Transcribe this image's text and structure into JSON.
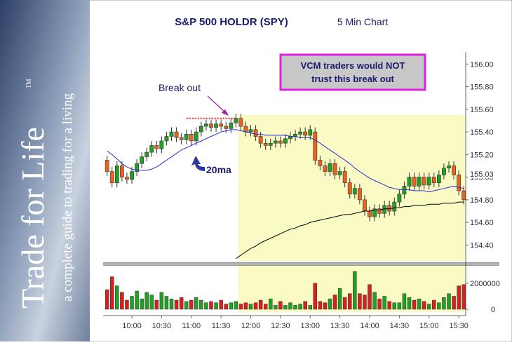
{
  "sidebar": {
    "title": "Trade for Life",
    "trademark": "TM",
    "tagline": "a complete guide to trading for a living"
  },
  "chart_data": [
    {
      "type": "candlestick",
      "title": "S&P 500 HOLDR (SPY)",
      "subtitle": "5 Min Chart",
      "x": [
        "9:35",
        "9:40",
        "9:45",
        "9:50",
        "9:55",
        "10:00",
        "10:05",
        "10:10",
        "10:15",
        "10:20",
        "10:25",
        "10:30",
        "10:35",
        "10:40",
        "10:45",
        "10:50",
        "10:55",
        "11:00",
        "11:05",
        "11:10",
        "11:15",
        "11:20",
        "11:25",
        "11:30",
        "11:35",
        "11:40",
        "11:45",
        "11:50",
        "11:55",
        "12:00",
        "12:05",
        "12:10",
        "12:15",
        "12:20",
        "12:25",
        "12:30",
        "12:35",
        "12:40",
        "12:45",
        "12:50",
        "12:55",
        "13:00",
        "13:05",
        "13:10",
        "13:15",
        "13:20",
        "13:25",
        "13:30",
        "13:35",
        "13:40",
        "13:45",
        "13:50",
        "13:55",
        "14:00",
        "14:05",
        "14:10",
        "14:15",
        "14:20",
        "14:25",
        "14:30",
        "14:35",
        "14:40",
        "14:45",
        "14:50",
        "14:55",
        "15:00",
        "15:05",
        "15:10",
        "15:15",
        "15:20",
        "15:25",
        "15:30",
        "15:35"
      ],
      "xticks": [
        "10:00",
        "10:30",
        "11:00",
        "11:30",
        "12:00",
        "12:30",
        "13:00",
        "13:30",
        "14:00",
        "14:30",
        "15:00",
        "15:30"
      ],
      "open": [
        155.15,
        155.05,
        154.95,
        155.1,
        155.0,
        154.98,
        155.05,
        155.12,
        155.18,
        155.22,
        155.28,
        155.25,
        155.32,
        155.36,
        155.4,
        155.35,
        155.33,
        155.38,
        155.32,
        155.4,
        155.45,
        155.47,
        155.44,
        155.47,
        155.45,
        155.43,
        155.48,
        155.52,
        155.45,
        155.4,
        155.42,
        155.36,
        155.3,
        155.28,
        155.3,
        155.32,
        155.3,
        155.34,
        155.36,
        155.38,
        155.4,
        155.37,
        155.4,
        155.15,
        155.1,
        155.05,
        155.12,
        155.02,
        155.05,
        154.95,
        154.85,
        154.9,
        154.8,
        154.7,
        154.65,
        154.72,
        154.68,
        154.75,
        154.7,
        154.78,
        154.85,
        154.92,
        155.0,
        154.92,
        155.0,
        154.93,
        155.0,
        154.95,
        155.02,
        155.08,
        155.1,
        155.02,
        154.88
      ],
      "high": [
        155.19,
        155.09,
        155.14,
        155.14,
        155.04,
        155.09,
        155.16,
        155.22,
        155.26,
        155.32,
        155.32,
        155.36,
        155.4,
        155.44,
        155.44,
        155.39,
        155.42,
        155.42,
        155.44,
        155.49,
        155.51,
        155.51,
        155.51,
        155.51,
        155.49,
        155.52,
        155.56,
        155.56,
        155.49,
        155.46,
        155.46,
        155.4,
        155.34,
        155.34,
        155.36,
        155.36,
        155.38,
        155.4,
        155.42,
        155.44,
        155.44,
        155.46,
        155.44,
        155.19,
        155.14,
        155.16,
        155.16,
        155.09,
        155.09,
        154.99,
        154.94,
        154.94,
        154.84,
        154.74,
        154.76,
        154.76,
        154.79,
        154.79,
        154.82,
        154.89,
        154.96,
        155.04,
        155.04,
        155.04,
        155.04,
        155.04,
        155.04,
        155.06,
        155.12,
        155.14,
        155.14,
        155.06,
        154.92
      ],
      "low": [
        155.01,
        154.91,
        154.91,
        154.96,
        154.94,
        154.94,
        155.01,
        155.08,
        155.14,
        155.18,
        155.21,
        155.21,
        155.28,
        155.32,
        155.31,
        155.29,
        155.29,
        155.28,
        155.28,
        155.36,
        155.41,
        155.4,
        155.4,
        155.41,
        155.39,
        155.39,
        155.44,
        155.41,
        155.36,
        155.36,
        155.32,
        155.26,
        155.24,
        155.24,
        155.26,
        155.26,
        155.26,
        155.3,
        155.32,
        155.34,
        155.33,
        155.33,
        155.11,
        155.06,
        155.01,
        155.01,
        154.98,
        154.98,
        154.91,
        154.81,
        154.81,
        154.76,
        154.66,
        154.61,
        154.61,
        154.64,
        154.64,
        154.66,
        154.66,
        154.74,
        154.81,
        154.88,
        154.88,
        154.88,
        154.89,
        154.89,
        154.91,
        154.91,
        154.98,
        155.04,
        154.98,
        154.84,
        154.76
      ],
      "close": [
        155.05,
        154.95,
        155.1,
        155.0,
        154.98,
        155.05,
        155.12,
        155.18,
        155.22,
        155.28,
        155.25,
        155.32,
        155.36,
        155.4,
        155.35,
        155.33,
        155.38,
        155.32,
        155.4,
        155.45,
        155.47,
        155.44,
        155.47,
        155.45,
        155.43,
        155.48,
        155.52,
        155.45,
        155.4,
        155.42,
        155.36,
        155.3,
        155.28,
        155.3,
        155.32,
        155.3,
        155.34,
        155.36,
        155.38,
        155.4,
        155.37,
        155.42,
        155.15,
        155.1,
        155.05,
        155.12,
        155.02,
        155.05,
        154.95,
        154.85,
        154.9,
        154.8,
        154.7,
        154.65,
        154.72,
        154.68,
        154.75,
        154.7,
        154.78,
        154.85,
        154.92,
        155.0,
        154.92,
        155.0,
        154.93,
        155.0,
        154.95,
        155.02,
        155.08,
        155.1,
        155.02,
        154.88,
        154.8
      ],
      "up_color": "#22a022",
      "down_color": "#e8641e",
      "lines": [
        {
          "name": "20ma",
          "color": "#2b2bd0",
          "values": [
            155.23,
            155.2,
            155.16,
            155.12,
            155.09,
            155.07,
            155.06,
            155.06,
            155.06,
            155.07,
            155.09,
            155.12,
            155.15,
            155.18,
            155.21,
            155.24,
            155.26,
            155.28,
            155.3,
            155.32,
            155.34,
            155.36,
            155.38,
            155.4,
            155.41,
            155.42,
            155.42,
            155.41,
            155.4,
            155.39,
            155.38,
            155.38,
            155.37,
            155.37,
            155.37,
            155.37,
            155.37,
            155.36,
            155.36,
            155.35,
            155.35,
            155.35,
            155.33,
            155.3,
            155.27,
            155.24,
            155.21,
            155.18,
            155.15,
            155.12,
            155.08,
            155.05,
            155.02,
            154.99,
            154.97,
            154.95,
            154.93,
            154.91,
            154.9,
            154.89,
            154.89,
            154.89,
            154.88,
            154.88,
            154.88,
            154.87,
            154.88,
            154.89,
            154.9,
            154.91,
            154.92,
            154.91,
            154.9
          ]
        },
        {
          "color": "#000000",
          "values": [
            null,
            null,
            null,
            null,
            null,
            null,
            null,
            null,
            null,
            null,
            null,
            null,
            null,
            null,
            null,
            null,
            null,
            null,
            null,
            null,
            null,
            null,
            null,
            null,
            null,
            null,
            154.28,
            154.31,
            154.34,
            154.37,
            154.39,
            154.42,
            154.44,
            154.46,
            154.48,
            154.5,
            154.52,
            154.54,
            154.55,
            154.57,
            154.58,
            154.6,
            154.61,
            154.62,
            154.63,
            154.64,
            154.65,
            154.66,
            154.67,
            154.67,
            154.68,
            154.69,
            154.7,
            154.7,
            154.71,
            154.71,
            154.72,
            154.72,
            154.73,
            154.73,
            154.74,
            154.74,
            154.75,
            154.75,
            154.75,
            154.76,
            154.76,
            154.76,
            154.77,
            154.77,
            154.77,
            154.78,
            154.78
          ]
        }
      ],
      "ylim": [
        154.26,
        156.07
      ],
      "yticks": [
        {
          "value": 154.4,
          "label": "154.40"
        },
        {
          "value": 154.6,
          "label": "154.60"
        },
        {
          "value": 154.8,
          "label": "154.80"
        },
        {
          "value": 155,
          "label": "155.00"
        },
        {
          "value": 155.2,
          "label": "155.20"
        },
        {
          "value": 155.4,
          "label": "155.40"
        },
        {
          "value": 155.6,
          "label": "155.60"
        },
        {
          "value": 155.8,
          "label": "155.80"
        },
        {
          "value": 156,
          "label": "156.00"
        }
      ],
      "price_marker": 155.03,
      "highlight": {
        "from": "11:50",
        "top": 155.55,
        "color": "#fafac4"
      },
      "breakout_level": {
        "value": 155.52,
        "from": "10:55",
        "to": "11:45",
        "color": "#e02020"
      },
      "annotations": {
        "callout": [
          "VCM traders would NOT",
          "trust this break out"
        ],
        "breakout": "Break out"
      }
    },
    {
      "type": "bar",
      "values": [
        1500000,
        2500000,
        1800000,
        1300000,
        700000,
        1000000,
        1400000,
        800000,
        1300000,
        1100000,
        700000,
        1300000,
        1000000,
        800000,
        700000,
        900000,
        600000,
        700000,
        900000,
        700000,
        500000,
        600000,
        500000,
        700000,
        400000,
        500000,
        600000,
        400000,
        500000,
        400000,
        500000,
        700000,
        400000,
        800000,
        300000,
        600000,
        300000,
        500000,
        300000,
        400000,
        600000,
        300000,
        2000000,
        600000,
        500000,
        800000,
        1100000,
        1600000,
        900000,
        1200000,
        2900000,
        1200000,
        1100000,
        1900000,
        1300000,
        800000,
        1000000,
        600000,
        500000,
        500000,
        1200000,
        900000,
        700000,
        800000,
        600000,
        400000,
        700000,
        500000,
        900000,
        1200000,
        1000000,
        1800000,
        1900000
      ],
      "ylim": [
        0,
        3400000
      ],
      "yticks": [
        0,
        2000000
      ]
    }
  ]
}
